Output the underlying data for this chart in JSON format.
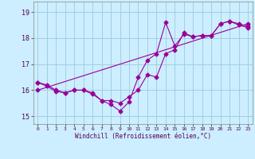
{
  "xlabel": "Windchill (Refroidissement éolien,°C)",
  "background_color": "#cceeff",
  "line_color": "#990099",
  "grid_color": "#99ccdd",
  "xlim": [
    -0.5,
    23.5
  ],
  "ylim": [
    14.7,
    19.4
  ],
  "yticks": [
    15,
    16,
    17,
    18,
    19
  ],
  "xticks": [
    0,
    1,
    2,
    3,
    4,
    5,
    6,
    7,
    8,
    9,
    10,
    11,
    12,
    13,
    14,
    15,
    16,
    17,
    18,
    19,
    20,
    21,
    22,
    23
  ],
  "series1_x": [
    0,
    1,
    2,
    3,
    4,
    5,
    6,
    7,
    8,
    9,
    10,
    11,
    12,
    13,
    14,
    15,
    16,
    17,
    18,
    19,
    20,
    21,
    22,
    23
  ],
  "series1_y": [
    16.3,
    16.2,
    16.0,
    15.9,
    16.0,
    16.0,
    15.9,
    15.6,
    15.6,
    15.5,
    15.75,
    16.0,
    16.6,
    16.5,
    17.4,
    17.55,
    18.2,
    18.05,
    18.1,
    18.1,
    18.55,
    18.65,
    18.55,
    18.45
  ],
  "series2_x": [
    0,
    1,
    2,
    3,
    4,
    5,
    6,
    7,
    8,
    9,
    10,
    11,
    12,
    13,
    14,
    15,
    16,
    17,
    18,
    19,
    20,
    21,
    22,
    23
  ],
  "series2_y": [
    16.3,
    16.15,
    15.95,
    15.9,
    16.0,
    16.0,
    15.85,
    15.6,
    15.45,
    15.2,
    15.55,
    16.5,
    17.15,
    17.4,
    18.6,
    17.7,
    18.15,
    18.05,
    18.1,
    18.1,
    18.55,
    18.65,
    18.5,
    18.4
  ],
  "series3_x": [
    0,
    23
  ],
  "series3_y": [
    16.0,
    18.55
  ]
}
